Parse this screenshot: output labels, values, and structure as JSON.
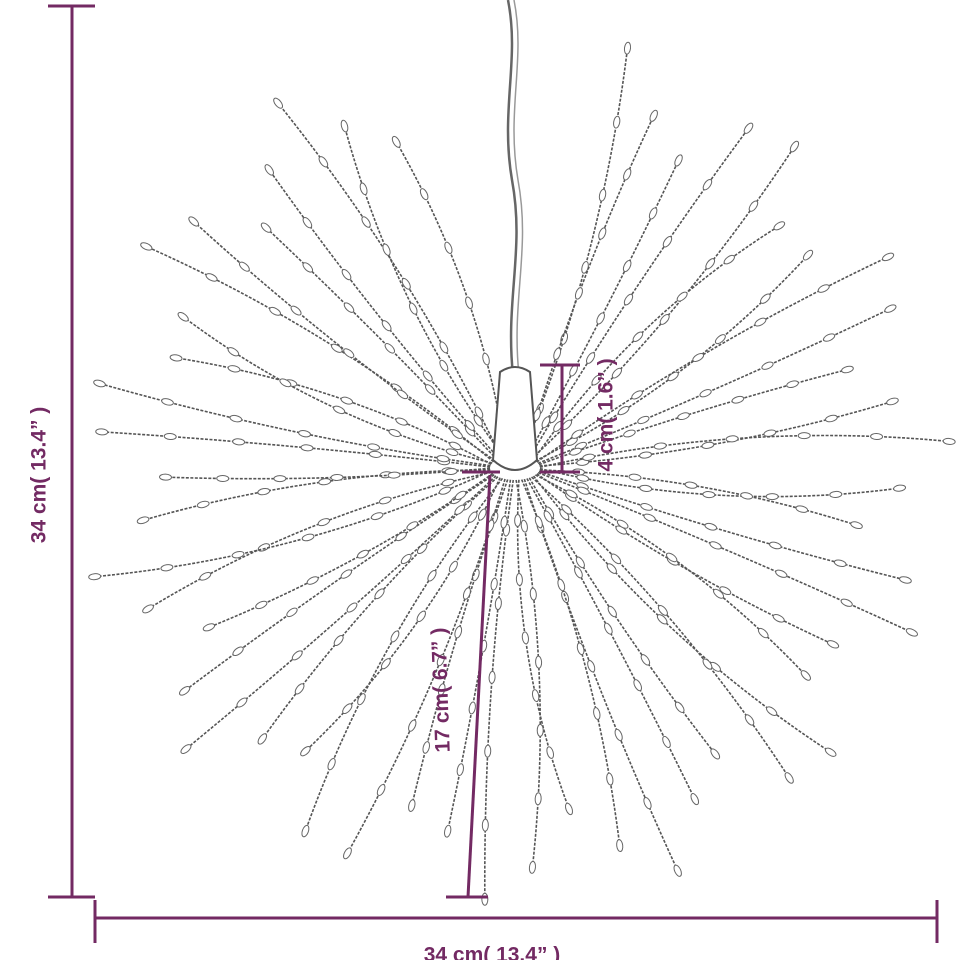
{
  "dimensions": {
    "height": "34 cm( 13.4” )",
    "width": "34 cm( 13.4” )",
    "holder_height": "4 cm( 1.6” )",
    "strand_length": "17 cm( 6.7” )"
  }
}
